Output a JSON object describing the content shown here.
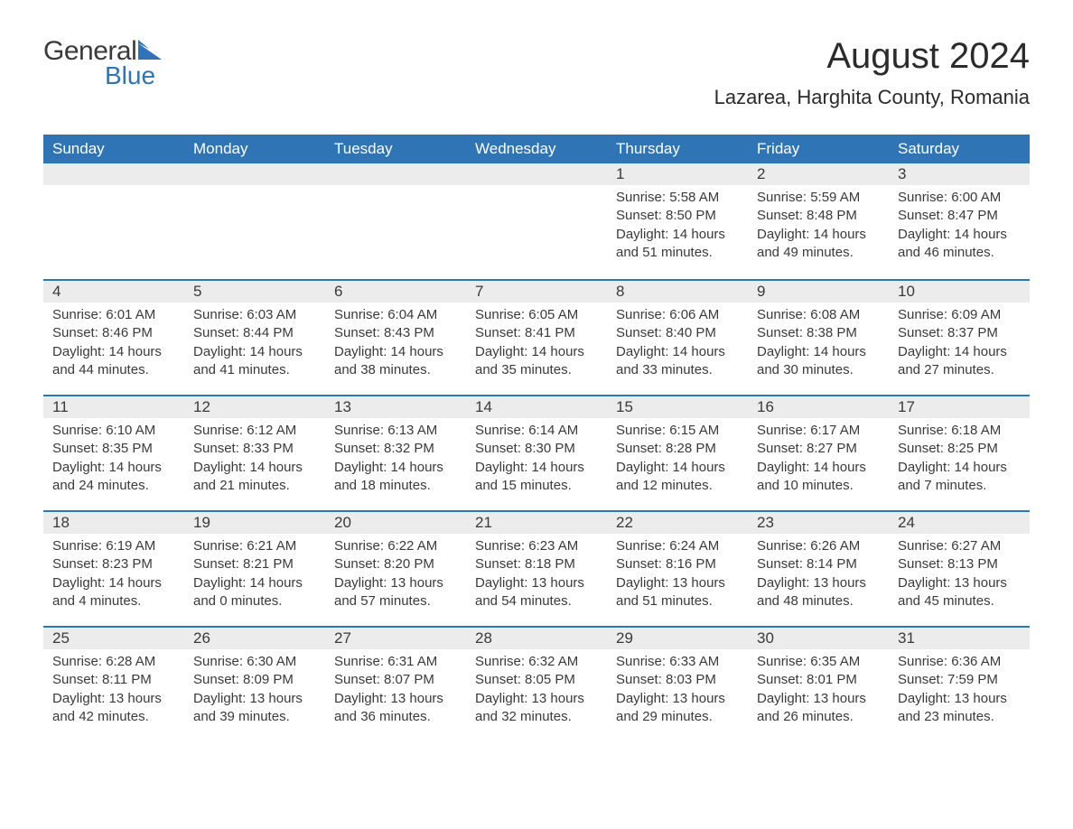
{
  "logo": {
    "text1": "General",
    "text2": "Blue",
    "triangle_color": "#2f74b5"
  },
  "title": "August 2024",
  "location": "Lazarea, Harghita County, Romania",
  "colors": {
    "header_bg": "#2f74b5",
    "header_text": "#ffffff",
    "daynum_bg": "#ececec",
    "row_border": "#2f74b5",
    "body_text": "#3a3a3a",
    "page_bg": "#ffffff"
  },
  "typography": {
    "title_fontsize": 40,
    "location_fontsize": 22,
    "header_fontsize": 17,
    "daynum_fontsize": 17,
    "body_fontsize": 15
  },
  "weekdays": [
    "Sunday",
    "Monday",
    "Tuesday",
    "Wednesday",
    "Thursday",
    "Friday",
    "Saturday"
  ],
  "weeks": [
    [
      null,
      null,
      null,
      null,
      {
        "n": "1",
        "sunrise": "5:58 AM",
        "sunset": "8:50 PM",
        "daylight": "14 hours and 51 minutes."
      },
      {
        "n": "2",
        "sunrise": "5:59 AM",
        "sunset": "8:48 PM",
        "daylight": "14 hours and 49 minutes."
      },
      {
        "n": "3",
        "sunrise": "6:00 AM",
        "sunset": "8:47 PM",
        "daylight": "14 hours and 46 minutes."
      }
    ],
    [
      {
        "n": "4",
        "sunrise": "6:01 AM",
        "sunset": "8:46 PM",
        "daylight": "14 hours and 44 minutes."
      },
      {
        "n": "5",
        "sunrise": "6:03 AM",
        "sunset": "8:44 PM",
        "daylight": "14 hours and 41 minutes."
      },
      {
        "n": "6",
        "sunrise": "6:04 AM",
        "sunset": "8:43 PM",
        "daylight": "14 hours and 38 minutes."
      },
      {
        "n": "7",
        "sunrise": "6:05 AM",
        "sunset": "8:41 PM",
        "daylight": "14 hours and 35 minutes."
      },
      {
        "n": "8",
        "sunrise": "6:06 AM",
        "sunset": "8:40 PM",
        "daylight": "14 hours and 33 minutes."
      },
      {
        "n": "9",
        "sunrise": "6:08 AM",
        "sunset": "8:38 PM",
        "daylight": "14 hours and 30 minutes."
      },
      {
        "n": "10",
        "sunrise": "6:09 AM",
        "sunset": "8:37 PM",
        "daylight": "14 hours and 27 minutes."
      }
    ],
    [
      {
        "n": "11",
        "sunrise": "6:10 AM",
        "sunset": "8:35 PM",
        "daylight": "14 hours and 24 minutes."
      },
      {
        "n": "12",
        "sunrise": "6:12 AM",
        "sunset": "8:33 PM",
        "daylight": "14 hours and 21 minutes."
      },
      {
        "n": "13",
        "sunrise": "6:13 AM",
        "sunset": "8:32 PM",
        "daylight": "14 hours and 18 minutes."
      },
      {
        "n": "14",
        "sunrise": "6:14 AM",
        "sunset": "8:30 PM",
        "daylight": "14 hours and 15 minutes."
      },
      {
        "n": "15",
        "sunrise": "6:15 AM",
        "sunset": "8:28 PM",
        "daylight": "14 hours and 12 minutes."
      },
      {
        "n": "16",
        "sunrise": "6:17 AM",
        "sunset": "8:27 PM",
        "daylight": "14 hours and 10 minutes."
      },
      {
        "n": "17",
        "sunrise": "6:18 AM",
        "sunset": "8:25 PM",
        "daylight": "14 hours and 7 minutes."
      }
    ],
    [
      {
        "n": "18",
        "sunrise": "6:19 AM",
        "sunset": "8:23 PM",
        "daylight": "14 hours and 4 minutes."
      },
      {
        "n": "19",
        "sunrise": "6:21 AM",
        "sunset": "8:21 PM",
        "daylight": "14 hours and 0 minutes."
      },
      {
        "n": "20",
        "sunrise": "6:22 AM",
        "sunset": "8:20 PM",
        "daylight": "13 hours and 57 minutes."
      },
      {
        "n": "21",
        "sunrise": "6:23 AM",
        "sunset": "8:18 PM",
        "daylight": "13 hours and 54 minutes."
      },
      {
        "n": "22",
        "sunrise": "6:24 AM",
        "sunset": "8:16 PM",
        "daylight": "13 hours and 51 minutes."
      },
      {
        "n": "23",
        "sunrise": "6:26 AM",
        "sunset": "8:14 PM",
        "daylight": "13 hours and 48 minutes."
      },
      {
        "n": "24",
        "sunrise": "6:27 AM",
        "sunset": "8:13 PM",
        "daylight": "13 hours and 45 minutes."
      }
    ],
    [
      {
        "n": "25",
        "sunrise": "6:28 AM",
        "sunset": "8:11 PM",
        "daylight": "13 hours and 42 minutes."
      },
      {
        "n": "26",
        "sunrise": "6:30 AM",
        "sunset": "8:09 PM",
        "daylight": "13 hours and 39 minutes."
      },
      {
        "n": "27",
        "sunrise": "6:31 AM",
        "sunset": "8:07 PM",
        "daylight": "13 hours and 36 minutes."
      },
      {
        "n": "28",
        "sunrise": "6:32 AM",
        "sunset": "8:05 PM",
        "daylight": "13 hours and 32 minutes."
      },
      {
        "n": "29",
        "sunrise": "6:33 AM",
        "sunset": "8:03 PM",
        "daylight": "13 hours and 29 minutes."
      },
      {
        "n": "30",
        "sunrise": "6:35 AM",
        "sunset": "8:01 PM",
        "daylight": "13 hours and 26 minutes."
      },
      {
        "n": "31",
        "sunrise": "6:36 AM",
        "sunset": "7:59 PM",
        "daylight": "13 hours and 23 minutes."
      }
    ]
  ],
  "labels": {
    "sunrise": "Sunrise:",
    "sunset": "Sunset:",
    "daylight": "Daylight:"
  }
}
